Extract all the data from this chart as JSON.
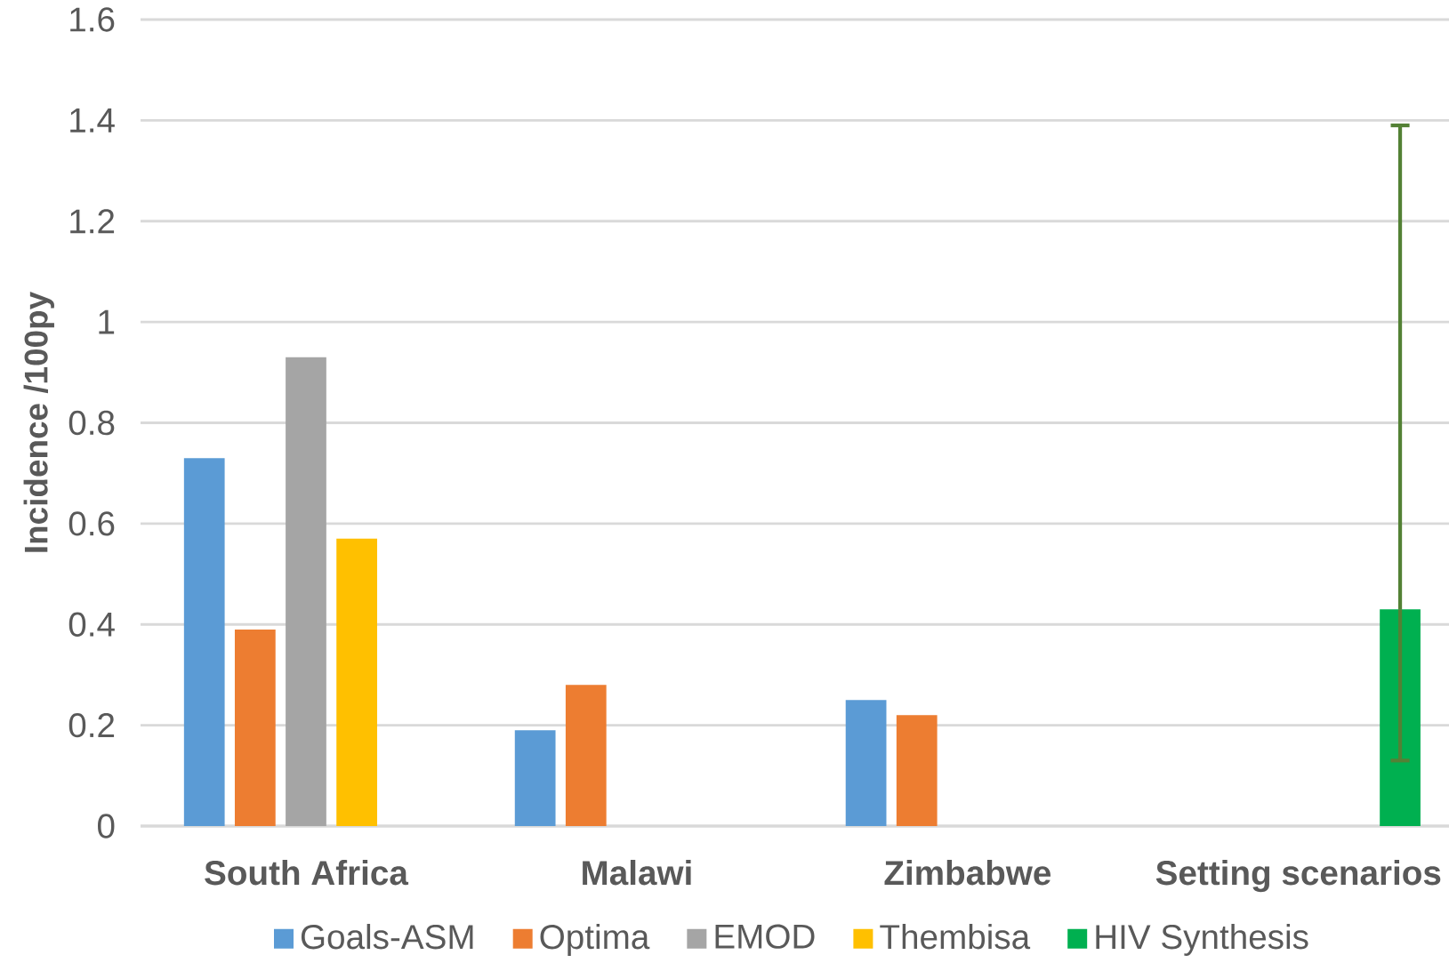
{
  "chart_data": {
    "type": "bar",
    "ylabel": "Incidence /100py",
    "categories": [
      "South Africa",
      "Malawi",
      "Zimbabwe",
      "Setting scenarios"
    ],
    "series": [
      {
        "name": "Goals-ASM",
        "color": "#5b9bd5",
        "values": [
          0.73,
          0.19,
          0.25,
          null
        ]
      },
      {
        "name": "Optima",
        "color": "#ed7d31",
        "values": [
          0.39,
          0.28,
          0.22,
          null
        ]
      },
      {
        "name": "EMOD",
        "color": "#a5a5a5",
        "values": [
          0.93,
          null,
          null,
          null
        ]
      },
      {
        "name": "Thembisa",
        "color": "#ffc000",
        "values": [
          0.57,
          null,
          null,
          null
        ]
      },
      {
        "name": "HIV Synthesis",
        "color": "#00b050",
        "values": [
          null,
          null,
          null,
          0.43
        ],
        "errors": [
          null,
          null,
          null,
          [
            0.13,
            1.39
          ]
        ]
      }
    ],
    "ylim": [
      0,
      1.6
    ],
    "yticks": [
      0,
      0.2,
      0.4,
      0.6,
      0.8,
      1,
      1.2,
      1.4,
      1.6
    ],
    "grid": "y",
    "legend": "bottom"
  }
}
